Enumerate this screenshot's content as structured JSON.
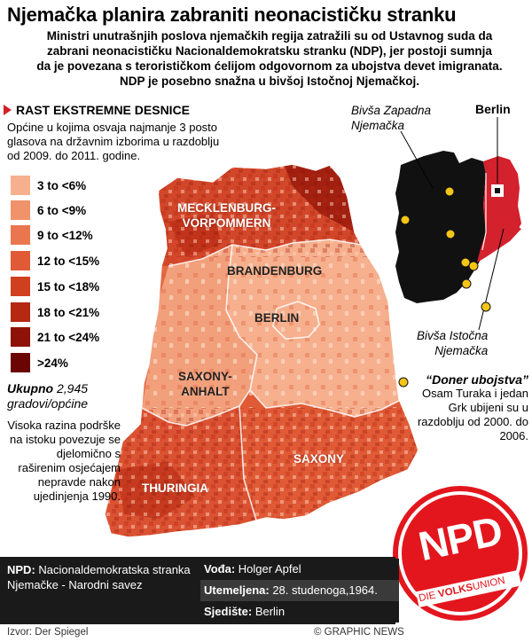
{
  "title": "Njemačka planira zabraniti neonacističku stranku",
  "intro": [
    "Ministri unutrašnjih poslova njemačkih regija zatražili su od Ustavnog suda da",
    "zabrani neonacističku Nacionaldemokratsku stranku (NDP), jer postoji sumnja",
    "da je povezana s terorističkom ćelijom odgovornom za ubojstva devet imigranata.",
    "NDP je posebno snažna u bivšoj Istočnoj Njemačkoj."
  ],
  "legend": {
    "heading": "RAST EKSTREMNE DESNICE",
    "desc": "Općine u kojima osvaja najmanje 3 posto glasova na državnim izborima u razdoblju od 2009. do 2011. godine.",
    "items": [
      {
        "label": "3 to <6%",
        "color": "#f6b08e"
      },
      {
        "label": "6 to <9%",
        "color": "#f0936b"
      },
      {
        "label": "9 to <12%",
        "color": "#ea7650"
      },
      {
        "label": "12 to <15%",
        "color": "#e05a36"
      },
      {
        "label": "15 to <18%",
        "color": "#d0401f"
      },
      {
        "label": "18 to <21%",
        "color": "#b52812"
      },
      {
        "label": "21 to <24%",
        "color": "#8f1208"
      },
      {
        "label": ">24%",
        "color": "#6a0504"
      }
    ]
  },
  "total": {
    "label": "Ukupno",
    "value": "2,945",
    "unit": "gradovi/općine"
  },
  "east_note": "Visoka razina podrške na istoku povezuje se djelomično s raširenim osjećajem nepravde nakon ujedinjenja 1990.",
  "regions": {
    "mv_line1": "MECKLENBURG-",
    "mv_line2": "VORPOMMERN",
    "brandenburg": "BRANDENBURG",
    "berlin": "BERLIN",
    "sa_line1": "SAXONY-",
    "sa_line2": "ANHALT",
    "saxony": "SAXONY",
    "thuringia": "THURINGIA"
  },
  "inset": {
    "west_line1": "Bivša Zapadna",
    "west_line2": "Njemačka",
    "berlin": "Berlin",
    "east_line1": "Bivša Istočna",
    "east_line2": "Njemačka",
    "west_color": "#111111",
    "east_color": "#d3212d",
    "marker_color": "#f5c518"
  },
  "murders": {
    "title": "“Doner ubojstva”",
    "text": "Osam Turaka i jedan Grk ubijeni su u razdoblju od 2000. do 2006."
  },
  "info": {
    "npd_label": "NPD:",
    "npd_name": "Nacionaldemokratska stranka Njemačke - Narodni savez",
    "leader_label": "Vođa:",
    "leader_value": "Holger Apfel",
    "founded_label": "Utemeljena:",
    "founded_value": "28. studenoga,1964.",
    "hq_label": "Sjedište:",
    "hq_value": "Berlin"
  },
  "logo": {
    "main": "NPD",
    "sub_pre": "DIE ",
    "sub_bold": "VOLKS",
    "sub_post": "UNION",
    "color": "#e3161e"
  },
  "footer": {
    "source": "Izvor: Der Spiegel",
    "credit": "© GRAPHIC NEWS"
  }
}
